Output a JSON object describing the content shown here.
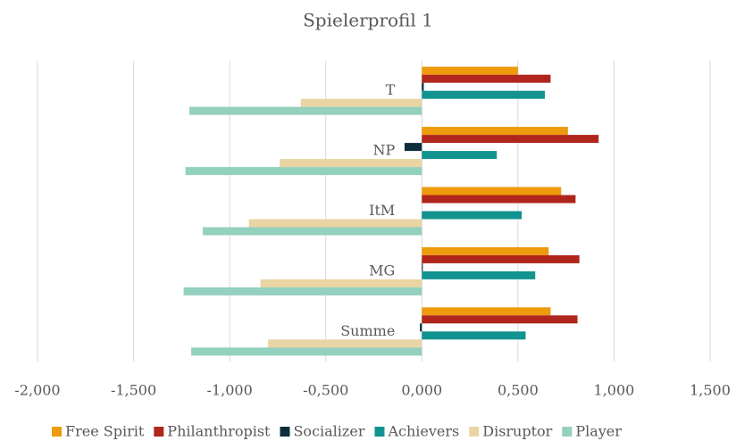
{
  "chart_data": {
    "type": "hbar",
    "title": "Spielerprofil 1",
    "categories": [
      "T",
      "NP",
      "ItM",
      "MG",
      "Summe"
    ],
    "series": [
      {
        "name": "Free Spirit",
        "color": "#ed9a0c",
        "values": [
          0.5,
          0.76,
          0.725,
          0.66,
          0.67
        ]
      },
      {
        "name": "Philanthropist",
        "color": "#b0261c",
        "values": [
          0.67,
          0.92,
          0.8,
          0.82,
          0.81
        ]
      },
      {
        "name": "Socializer",
        "color": "#0d2c3c",
        "values": [
          0.01,
          -0.09,
          0.0,
          0.005,
          -0.01
        ]
      },
      {
        "name": "Achievers",
        "color": "#12938f",
        "values": [
          0.64,
          0.39,
          0.52,
          0.59,
          0.54
        ]
      },
      {
        "name": "Disruptor",
        "color": "#e9d4a4",
        "values": [
          -0.63,
          -0.74,
          -0.9,
          -0.84,
          -0.8
        ]
      },
      {
        "name": "Player",
        "color": "#93d0bd",
        "values": [
          -1.21,
          -1.23,
          -1.14,
          -1.24,
          -1.2
        ]
      }
    ],
    "xlim": [
      -2,
      1.5
    ],
    "xticks": [
      {
        "value": -2,
        "label": "-2,000"
      },
      {
        "value": -1.5,
        "label": "-1,500"
      },
      {
        "value": -1,
        "label": "-1,000"
      },
      {
        "value": -0.5,
        "label": "-0,500"
      },
      {
        "value": 0,
        "label": "0,000"
      },
      {
        "value": 0.5,
        "label": "0,500"
      },
      {
        "value": 1,
        "label": "1,000"
      },
      {
        "value": 1.5,
        "label": "1,500"
      }
    ],
    "grid": true,
    "legend": "bottom"
  }
}
